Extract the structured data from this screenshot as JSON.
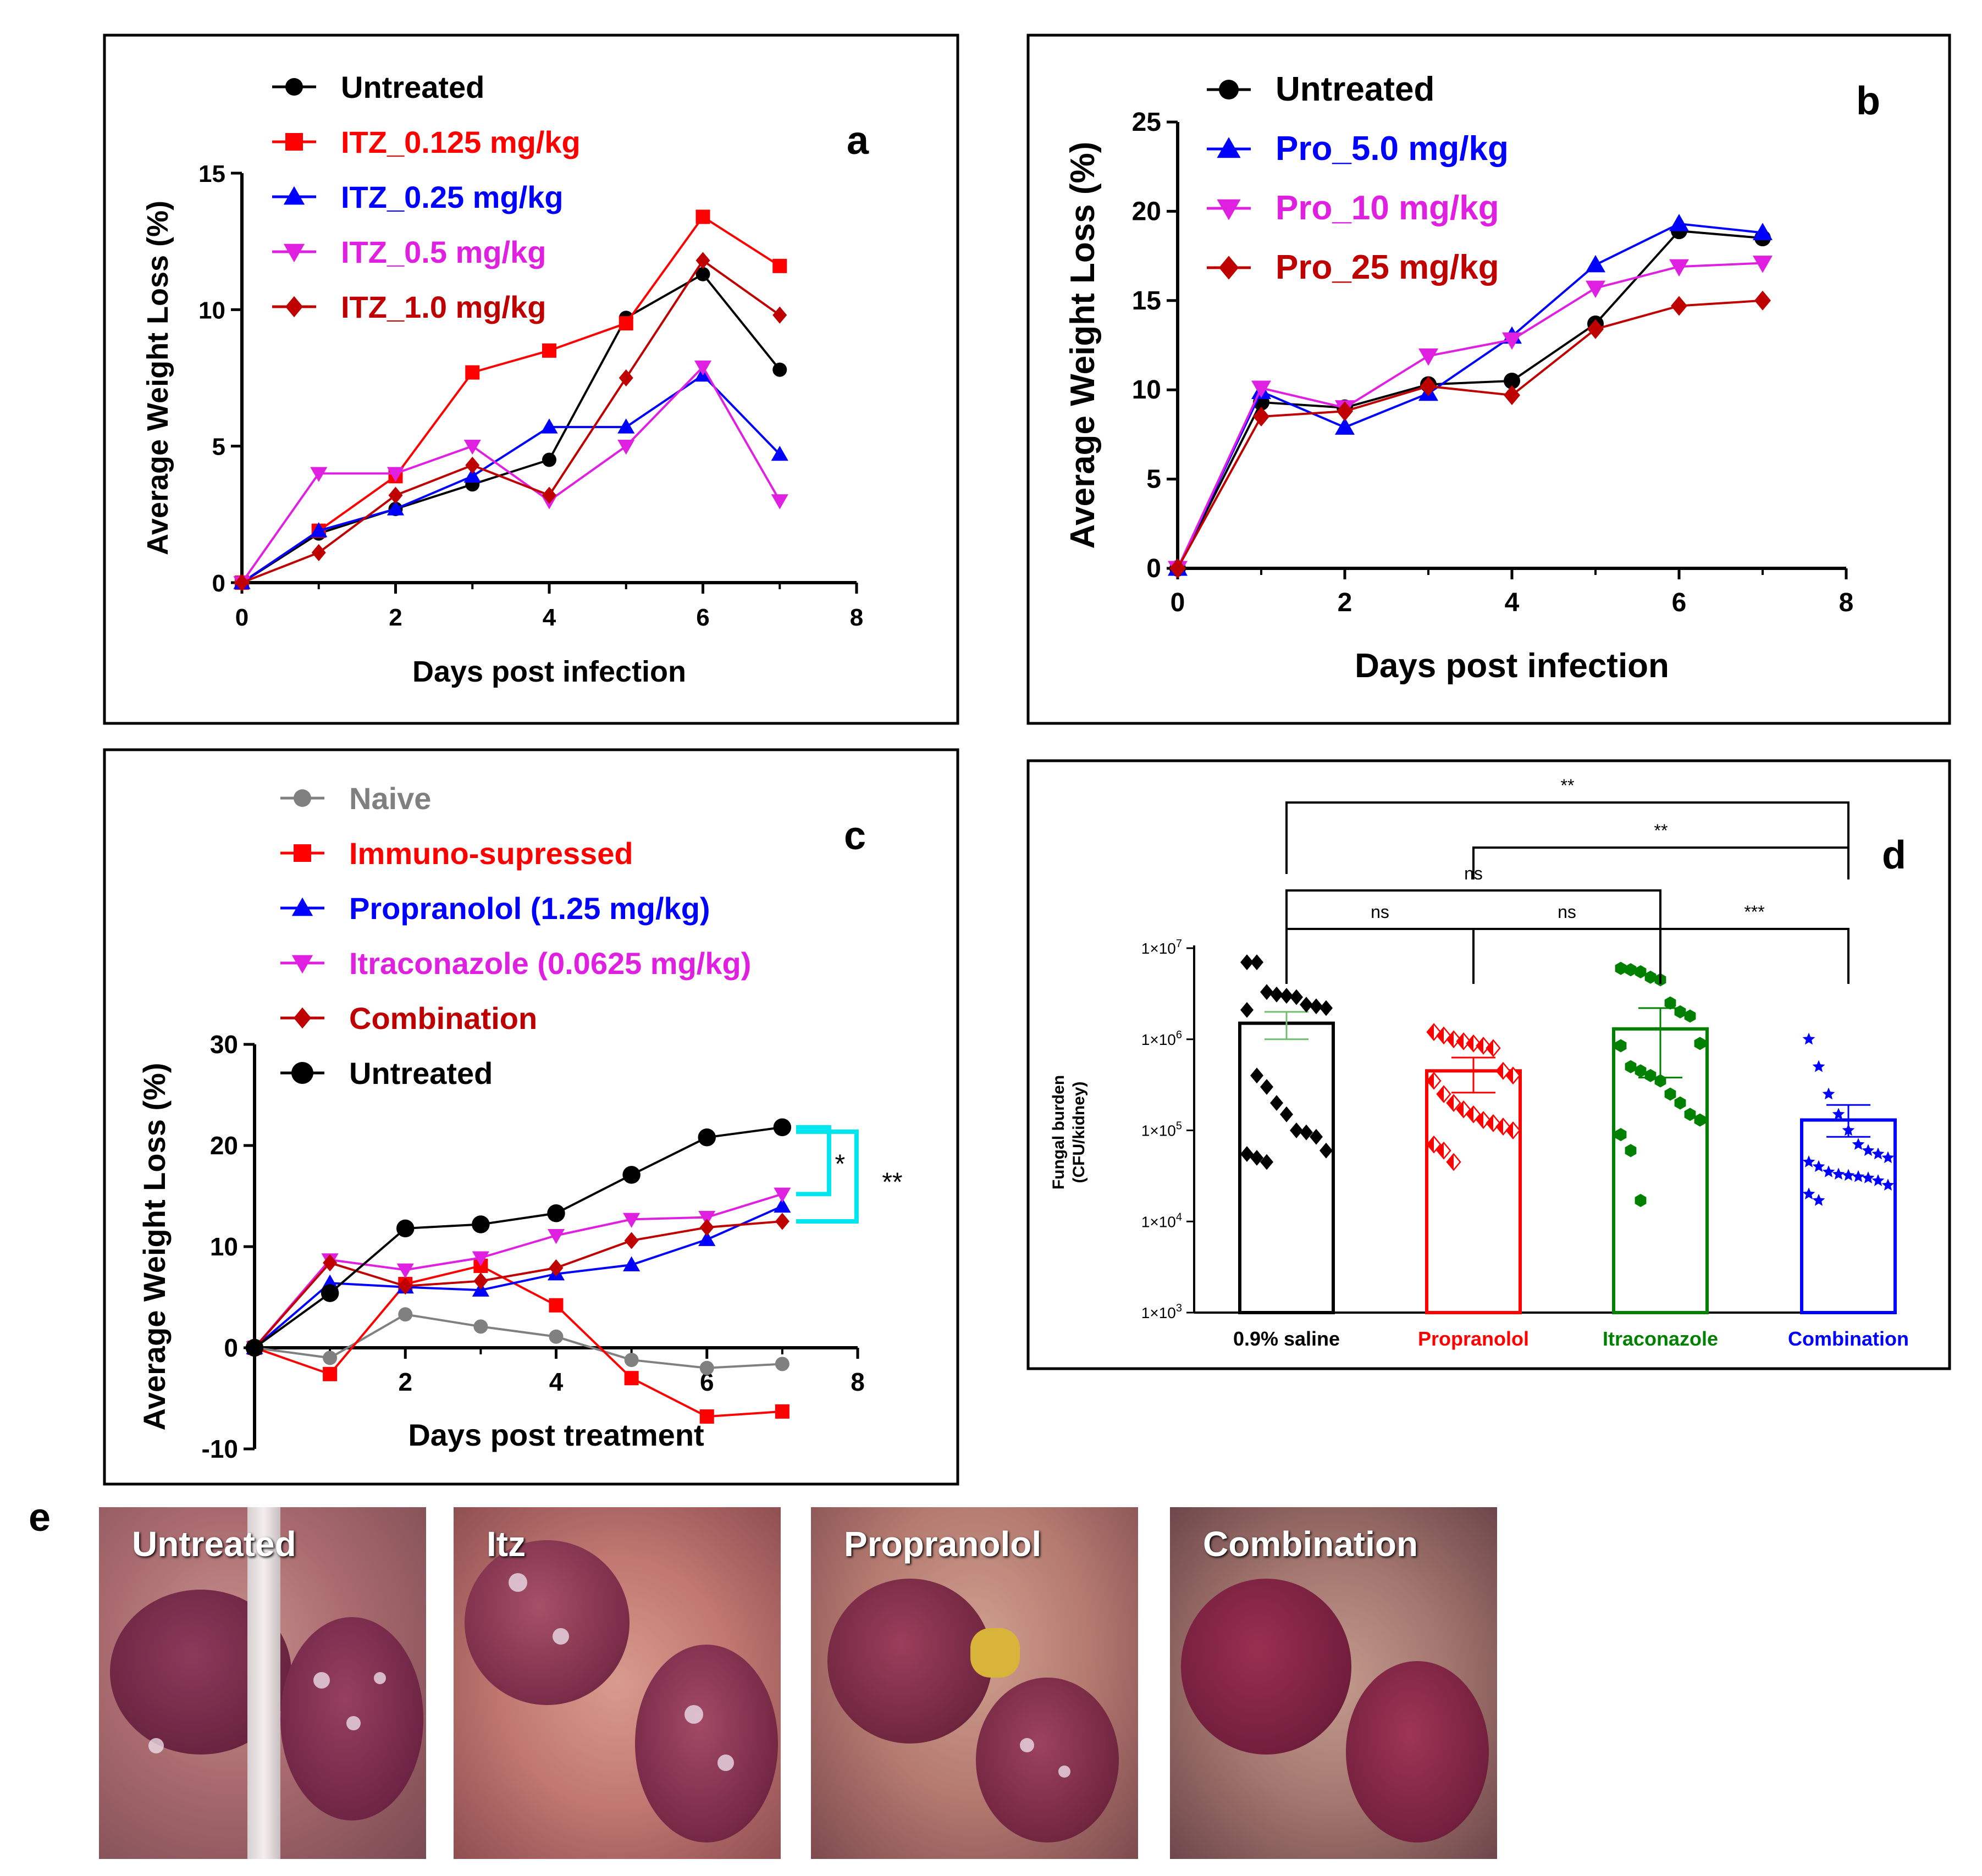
{
  "chart_data": [
    {
      "panel": "a",
      "type": "line",
      "panel_label": "a",
      "xlabel": "Days post infection",
      "ylabel": "Average Weight Loss (%)",
      "xlim": [
        0,
        8
      ],
      "ylim": [
        0,
        15
      ],
      "xticks": [
        "0",
        "2",
        "4",
        "6",
        "8"
      ],
      "yticks": [
        "0",
        "5",
        "10",
        "15"
      ],
      "x": [
        0,
        1,
        2,
        3,
        4,
        5,
        6,
        7
      ],
      "series": [
        {
          "name": "Untreated",
          "color": "#000000",
          "marker": "circle",
          "values": [
            0,
            1.8,
            2.7,
            3.6,
            4.5,
            9.7,
            11.3,
            7.8
          ]
        },
        {
          "name": "ITZ_0.125 mg/kg",
          "color": "#ff0000",
          "marker": "square",
          "values": [
            0,
            1.9,
            3.9,
            7.7,
            8.5,
            9.5,
            13.4,
            11.6
          ]
        },
        {
          "name": "ITZ_0.25 mg/kg",
          "color": "#0000ff",
          "marker": "triangle-up",
          "values": [
            0,
            1.9,
            2.7,
            3.9,
            5.7,
            5.7,
            7.6,
            4.7
          ]
        },
        {
          "name": "ITZ_0.5 mg/kg",
          "color": "#e020e0",
          "marker": "triangle-down",
          "values": [
            0,
            4.0,
            4.0,
            5.0,
            3.0,
            5.0,
            7.9,
            3.0
          ]
        },
        {
          "name": "ITZ_1.0 mg/kg",
          "color": "#bf0000",
          "marker": "diamond",
          "values": [
            0,
            1.1,
            3.2,
            4.3,
            3.2,
            7.5,
            11.8,
            9.8
          ]
        }
      ]
    },
    {
      "panel": "b",
      "type": "line",
      "panel_label": "b",
      "xlabel": "Days post infection",
      "ylabel": "Average Weight Loss (%)",
      "xlim": [
        0,
        8
      ],
      "ylim": [
        0,
        25
      ],
      "xticks": [
        "0",
        "2",
        "4",
        "6",
        "8"
      ],
      "yticks": [
        "0",
        "5",
        "10",
        "15",
        "20",
        "25"
      ],
      "x": [
        0,
        1,
        2,
        3,
        4,
        5,
        6,
        7
      ],
      "series": [
        {
          "name": "Untreated",
          "color": "#000000",
          "marker": "circle",
          "values": [
            0,
            9.3,
            9.0,
            10.3,
            10.5,
            13.7,
            18.9,
            18.5
          ]
        },
        {
          "name": "Pro_5.0 mg/kg",
          "color": "#0000ff",
          "marker": "triangle-up",
          "values": [
            0,
            9.9,
            7.9,
            9.8,
            13.0,
            17.0,
            19.3,
            18.8
          ]
        },
        {
          "name": "Pro_10 mg/kg",
          "color": "#e020e0",
          "marker": "triangle-down",
          "values": [
            0,
            10.1,
            9.0,
            11.9,
            12.8,
            15.7,
            16.9,
            17.1
          ]
        },
        {
          "name": "Pro_25 mg/kg",
          "color": "#bf0000",
          "marker": "diamond",
          "values": [
            0,
            8.5,
            8.8,
            10.2,
            9.7,
            13.4,
            14.7,
            15.0
          ]
        }
      ]
    },
    {
      "panel": "c",
      "type": "line",
      "panel_label": "c",
      "xlabel": "Days post treatment",
      "ylabel": "Average Weight Loss (%)",
      "xlim": [
        0,
        8
      ],
      "ylim": [
        -10,
        30
      ],
      "xticks": [
        "2",
        "4",
        "6",
        "8"
      ],
      "yticks": [
        "-10",
        "0",
        "10",
        "20",
        "30"
      ],
      "x": [
        0,
        1,
        2,
        3,
        4,
        5,
        6,
        7
      ],
      "series": [
        {
          "name": "Naive",
          "color": "#808080",
          "marker": "circle",
          "values": [
            0,
            -1,
            3.3,
            2.1,
            1.1,
            -1.2,
            -2,
            -1.6
          ]
        },
        {
          "name": "Immuno-supressed",
          "color": "#ff0000",
          "marker": "square",
          "values": [
            0,
            -2.6,
            6.3,
            8.1,
            4.2,
            -3,
            -6.8,
            -6.3
          ]
        },
        {
          "name": "Propranolol (1.25 mg/kg)",
          "color": "#0000ff",
          "marker": "triangle-up",
          "values": [
            0,
            6.4,
            6.0,
            5.7,
            7.3,
            8.2,
            10.7,
            14.0
          ]
        },
        {
          "name": "Itraconazole (0.0625 mg/kg)",
          "color": "#e020e0",
          "marker": "triangle-down",
          "values": [
            0,
            8.7,
            7.7,
            8.9,
            11.1,
            12.7,
            12.9,
            15.2
          ]
        },
        {
          "name": "Combination",
          "color": "#bf0000",
          "marker": "diamond",
          "values": [
            0,
            8.4,
            6.1,
            6.6,
            7.9,
            10.6,
            11.9,
            12.5
          ]
        },
        {
          "name": "Untreated",
          "color": "#000000",
          "marker": "circle-large",
          "values": [
            0,
            5.4,
            11.8,
            12.2,
            13.3,
            17.1,
            20.8,
            21.8
          ]
        }
      ],
      "annotations": [
        "*",
        "**"
      ]
    },
    {
      "panel": "d",
      "type": "bar",
      "panel_label": "d",
      "ylabel_line1": "Fungal burden",
      "ylabel_line2": "(CFU/kidney)",
      "yscale": "log",
      "ylim": [
        1000,
        10000000
      ],
      "ytick_base": "1×10",
      "ytick_exps": [
        "3",
        "4",
        "5",
        "6",
        "7"
      ],
      "categories": [
        "0.9% saline",
        "Propranolol",
        "Itraconazole",
        "Combination"
      ],
      "category_colors": [
        "#000000",
        "#ff0000",
        "#008000",
        "#0000ff"
      ],
      "markers": [
        "diamond",
        "diamond-half",
        "hexagon",
        "star"
      ],
      "values": [
        1500000,
        450000,
        1300000,
        130000
      ],
      "sem_low": [
        1000000,
        260000,
        380000,
        85000
      ],
      "sem_high": [
        2000000,
        630000,
        2200000,
        190000
      ],
      "points": [
        [
          7000000,
          7000000,
          3300000,
          3100000,
          3000000,
          2900000,
          2400000,
          2300000,
          2200000,
          2100000,
          400000,
          300000,
          200000,
          150000,
          100000,
          95000,
          85000,
          60000,
          55000,
          50000,
          45000
        ],
        [
          1200000,
          1100000,
          1000000,
          950000,
          900000,
          850000,
          800000,
          450000,
          400000,
          350000,
          250000,
          200000,
          170000,
          150000,
          130000,
          120000,
          110000,
          100000,
          70000,
          60000,
          45000
        ],
        [
          6000000,
          5800000,
          5500000,
          4800000,
          4500000,
          2500000,
          2000000,
          1800000,
          900000,
          850000,
          500000,
          450000,
          400000,
          350000,
          250000,
          200000,
          150000,
          130000,
          90000,
          60000,
          17000
        ],
        [
          1000000,
          500000,
          250000,
          150000,
          100000,
          70000,
          60000,
          55000,
          50000,
          45000,
          40000,
          35000,
          33000,
          32000,
          31000,
          30000,
          28000,
          25000,
          20000,
          17000
        ]
      ],
      "comparisons": [
        {
          "from": 0,
          "to": 1,
          "label": "ns"
        },
        {
          "from": 1,
          "to": 2,
          "label": "ns"
        },
        {
          "from": 2,
          "to": 3,
          "label": "***"
        },
        {
          "from": 0,
          "to": 2,
          "label": "ns"
        },
        {
          "from": 1,
          "to": 3,
          "label": "**"
        },
        {
          "from": 0,
          "to": 3,
          "label": "**"
        }
      ]
    }
  ],
  "panel_e": {
    "label": "e",
    "photos": [
      {
        "label": "Untreated"
      },
      {
        "label": "Itz"
      },
      {
        "label": "Propranolol"
      },
      {
        "label": "Combination"
      }
    ]
  }
}
